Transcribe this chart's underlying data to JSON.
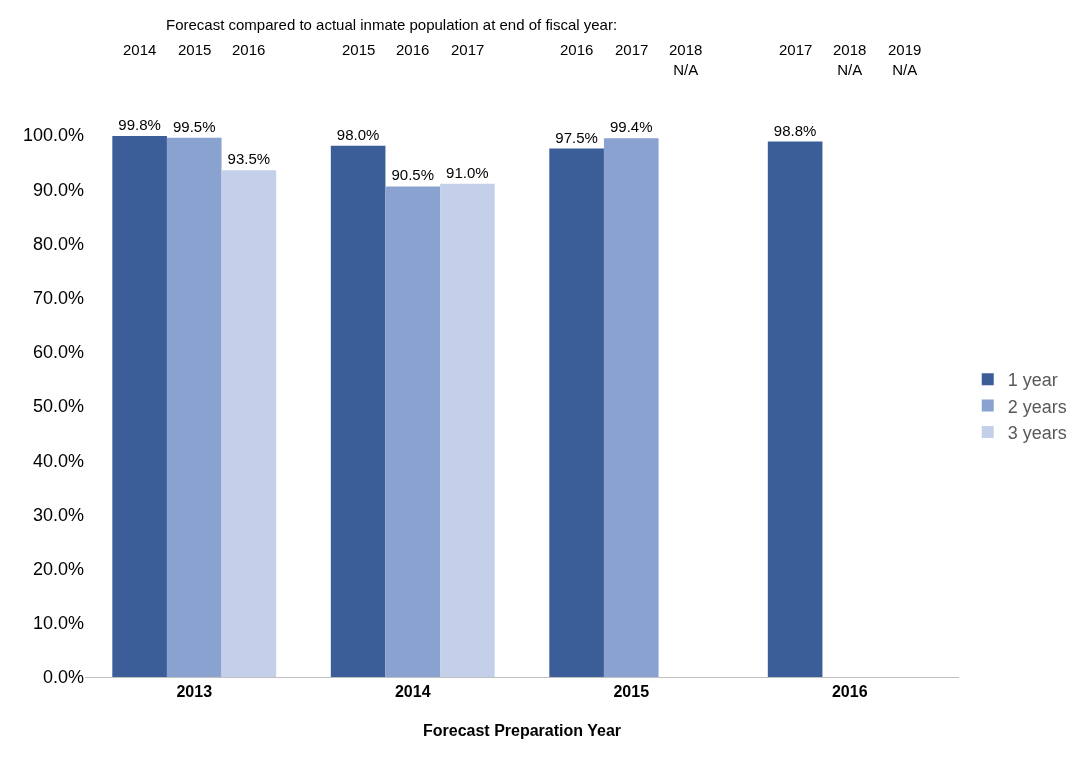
{
  "chart_data": {
    "type": "bar",
    "categories": [
      "2013",
      "2014",
      "2015",
      "2016"
    ],
    "xlabel": "Forecast Preparation Year",
    "series": [
      {
        "name": "1 year",
        "color": "#3b5e98",
        "values": [
          99.8,
          98.0,
          97.5,
          98.8
        ],
        "value_labels": [
          "99.8%",
          "98.0%",
          "97.5%",
          "98.8%"
        ]
      },
      {
        "name": "2 years",
        "color": "#8aa2cf",
        "values": [
          99.5,
          90.5,
          99.4,
          null
        ],
        "value_labels": [
          "99.5%",
          "90.5%",
          "99.4%",
          null
        ]
      },
      {
        "name": "3 years",
        "color": "#c4d0ea",
        "values": [
          93.5,
          91.0,
          null,
          null
        ],
        "value_labels": [
          "93.5%",
          "91.0%",
          null,
          null
        ]
      }
    ],
    "ylim": [
      0,
      100
    ],
    "yticks": [
      {
        "value": 0,
        "label": "0.0%"
      },
      {
        "value": 10,
        "label": "10.0%"
      },
      {
        "value": 20,
        "label": "20.0%"
      },
      {
        "value": 30,
        "label": "30.0%"
      },
      {
        "value": 40,
        "label": "40.0%"
      },
      {
        "value": 50,
        "label": "50.0%"
      },
      {
        "value": 60,
        "label": "60.0%"
      },
      {
        "value": 70,
        "label": "70.0%"
      },
      {
        "value": 80,
        "label": "80.0%"
      },
      {
        "value": 90,
        "label": "90.0%"
      },
      {
        "value": 100,
        "label": "100.0%"
      }
    ],
    "annotations": [
      "Forecast compared to actual inmate population at end of fiscal year:",
      "2014",
      "2015",
      "2016",
      "2015",
      "2016",
      "2017",
      "2016",
      "2017",
      "2018\nN/A",
      "2017",
      "2018\nN/A",
      "2019\nN/A"
    ],
    "grid": false,
    "legend": "right"
  }
}
